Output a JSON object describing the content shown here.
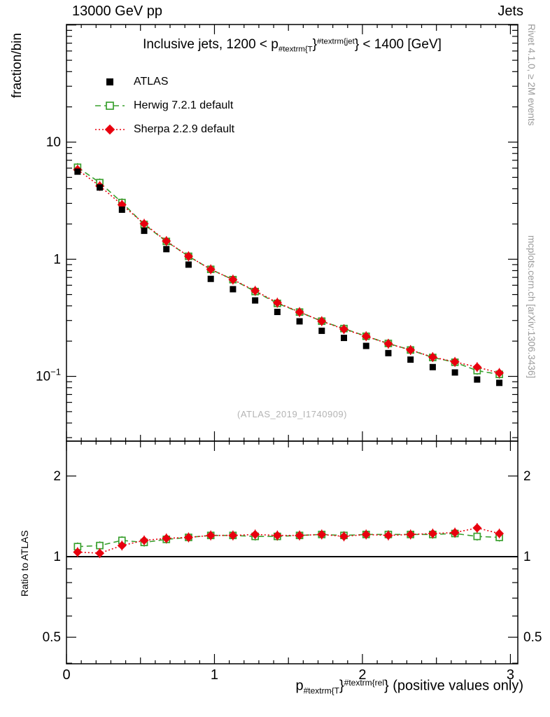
{
  "header": {
    "left": "13000 GeV pp",
    "right": "Jets"
  },
  "side_notes": {
    "top": "Rivet 4.1.0, ≥ 2M events",
    "bottom": "mcplots.cern.ch [arXiv:1306.3436]"
  },
  "watermark": "(ATLAS_2019_I1740909)",
  "title": {
    "prefix": "Inclusive jets, 1200 < p",
    "sub": "#textrm{T",
    "mid": "}",
    "sup": "#textrm{jet",
    "suffix": "} < 1400 [GeV]"
  },
  "legend": [
    {
      "label": "ATLAS",
      "marker": "filled-square",
      "color": "#000000",
      "line": "none"
    },
    {
      "label": "Herwig 7.2.1 default",
      "marker": "open-square",
      "color": "#3aa02f",
      "line": "dashed"
    },
    {
      "label": "Sherpa 2.2.9 default",
      "marker": "filled-diamond",
      "color": "#e8000e",
      "line": "dotted"
    }
  ],
  "axes": {
    "main_y_label": "fraction/bin",
    "ratio_y_label": "Ratio to ATLAS",
    "x_title": {
      "base": "p",
      "sub": "#textrm{T",
      "mid": "}",
      "sup": "#textrm{rel",
      "suffix": "} (positive values only)"
    },
    "x_ticks": [
      0,
      1,
      2,
      3
    ],
    "x_range": [
      0,
      3.05
    ],
    "main_y_ticks": [
      10,
      1,
      0.1
    ],
    "ratio_y_ticks": [
      2,
      1,
      0.5
    ]
  },
  "chart_data": {
    "type": "line",
    "title": "Inclusive jets, 1200 < p_{#textrm{T}}^{#textrm{jet}} < 1400 [GeV]",
    "xlabel": "p_{#textrm{T}}^{#textrm{rel}} (positive values only)",
    "ylabel": "fraction/bin",
    "x": [
      0.075,
      0.225,
      0.375,
      0.525,
      0.675,
      0.825,
      0.975,
      1.125,
      1.275,
      1.425,
      1.575,
      1.725,
      1.875,
      2.025,
      2.175,
      2.325,
      2.475,
      2.625,
      2.775,
      2.925
    ],
    "main_panel": {
      "yscale": "log",
      "ylim": [
        0.028,
        101
      ],
      "series": [
        {
          "name": "ATLAS",
          "marker": "filled-square",
          "color": "#000000",
          "linestyle": "none",
          "values": [
            5.6,
            4.1,
            2.65,
            1.75,
            1.22,
            0.9,
            0.68,
            0.555,
            0.445,
            0.355,
            0.295,
            0.245,
            0.213,
            0.182,
            0.158,
            0.139,
            0.12,
            0.108,
            0.094,
            0.088
          ]
        },
        {
          "name": "Herwig 7.2.1 default",
          "marker": "open-square",
          "color": "#3aa02f",
          "linestyle": "dashed",
          "values": [
            6.1,
            4.51,
            3.05,
            1.98,
            1.42,
            1.06,
            0.82,
            0.67,
            0.53,
            0.42,
            0.354,
            0.296,
            0.256,
            0.22,
            0.191,
            0.168,
            0.145,
            0.132,
            0.112,
            0.104
          ]
        },
        {
          "name": "Sherpa 2.2.9 default",
          "marker": "filled-diamond",
          "color": "#e8000e",
          "linestyle": "dotted",
          "values": [
            5.82,
            4.22,
            2.92,
            2.01,
            1.43,
            1.06,
            0.82,
            0.67,
            0.538,
            0.426,
            0.354,
            0.296,
            0.253,
            0.22,
            0.19,
            0.168,
            0.146,
            0.133,
            0.12,
            0.107
          ]
        }
      ]
    },
    "ratio_panel": {
      "yscale": "log",
      "ylim": [
        0.398,
        2.7
      ],
      "reference_line": 1,
      "series": [
        {
          "name": "Herwig 7.2.1 default / ATLAS",
          "marker": "open-square",
          "color": "#3aa02f",
          "linestyle": "dashed",
          "values": [
            1.09,
            1.1,
            1.15,
            1.13,
            1.16,
            1.18,
            1.2,
            1.2,
            1.19,
            1.19,
            1.2,
            1.21,
            1.2,
            1.21,
            1.21,
            1.21,
            1.21,
            1.22,
            1.19,
            1.18
          ]
        },
        {
          "name": "Sherpa 2.2.9 default / ATLAS",
          "marker": "filled-diamond",
          "color": "#e8000e",
          "linestyle": "dotted",
          "values": [
            1.04,
            1.03,
            1.1,
            1.15,
            1.17,
            1.18,
            1.2,
            1.2,
            1.21,
            1.2,
            1.2,
            1.21,
            1.19,
            1.21,
            1.2,
            1.21,
            1.22,
            1.23,
            1.28,
            1.22
          ]
        }
      ]
    }
  }
}
